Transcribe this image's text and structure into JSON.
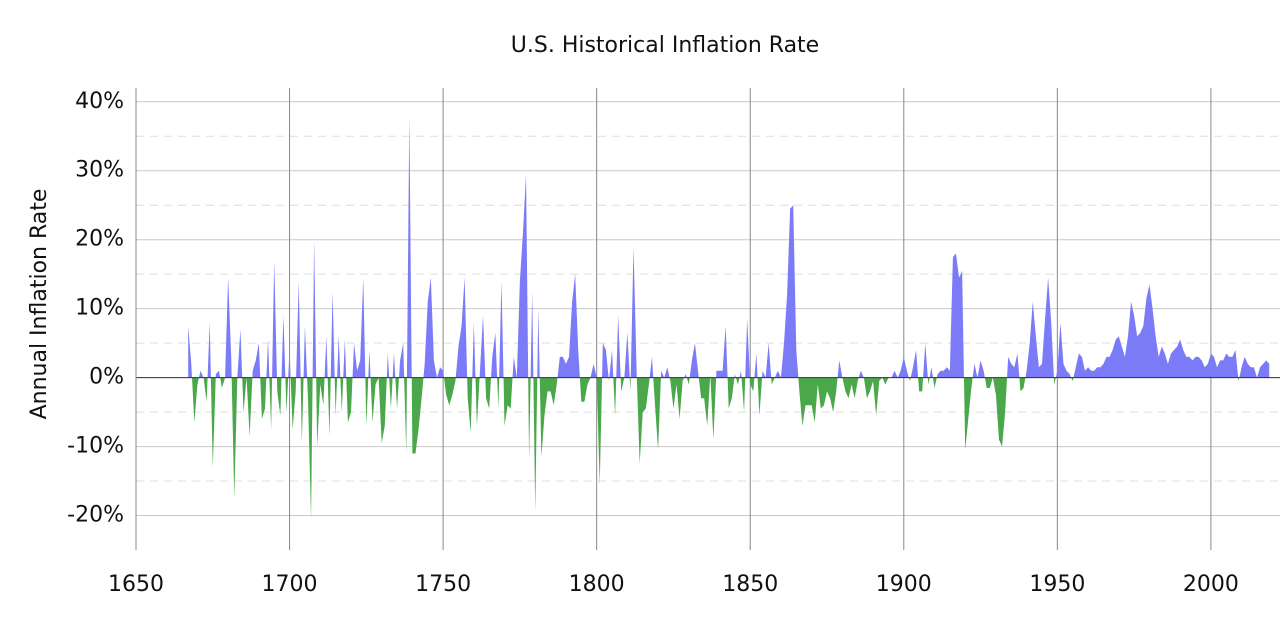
{
  "chart_data": {
    "type": "area",
    "title": "U.S. Historical Inflation Rate",
    "y_label": "Annual Inflation Rate",
    "positive_color": "#7b7bf7",
    "negative_color": "#4aa84a",
    "grid": true,
    "xlim": [
      1650,
      2022.5
    ],
    "xticks": [
      1650,
      1700,
      1750,
      1800,
      1850,
      1900,
      1950,
      2000
    ],
    "ylim": [
      -25,
      42
    ],
    "yticks": [
      {
        "value": -20,
        "label": "-20%"
      },
      {
        "value": -10,
        "label": "-10%"
      },
      {
        "value": 0,
        "label": "0%"
      },
      {
        "value": 10,
        "label": "10%"
      },
      {
        "value": 20,
        "label": "20%"
      },
      {
        "value": 30,
        "label": "30%"
      },
      {
        "value": 40,
        "label": "40%"
      }
    ],
    "minor_yticks": [
      -15,
      -5,
      5,
      15,
      25,
      35
    ],
    "x": [
      1667,
      1668,
      1669,
      1670,
      1671,
      1672,
      1673,
      1674,
      1675,
      1676,
      1677,
      1678,
      1679,
      1680,
      1681,
      1682,
      1683,
      1684,
      1685,
      1686,
      1687,
      1688,
      1689,
      1690,
      1691,
      1692,
      1693,
      1694,
      1695,
      1696,
      1697,
      1698,
      1699,
      1700,
      1701,
      1702,
      1703,
      1704,
      1705,
      1706,
      1707,
      1708,
      1709,
      1710,
      1711,
      1712,
      1713,
      1714,
      1715,
      1716,
      1717,
      1718,
      1719,
      1720,
      1721,
      1722,
      1723,
      1724,
      1725,
      1726,
      1727,
      1728,
      1729,
      1730,
      1731,
      1732,
      1733,
      1734,
      1735,
      1736,
      1737,
      1738,
      1739,
      1740,
      1741,
      1742,
      1743,
      1744,
      1745,
      1746,
      1747,
      1748,
      1749,
      1750,
      1751,
      1752,
      1753,
      1754,
      1755,
      1756,
      1757,
      1758,
      1759,
      1760,
      1761,
      1762,
      1763,
      1764,
      1765,
      1766,
      1767,
      1768,
      1769,
      1770,
      1771,
      1772,
      1773,
      1774,
      1775,
      1776,
      1777,
      1778,
      1779,
      1780,
      1781,
      1782,
      1783,
      1784,
      1785,
      1786,
      1787,
      1788,
      1789,
      1790,
      1791,
      1792,
      1793,
      1794,
      1795,
      1796,
      1797,
      1798,
      1799,
      1800,
      1801,
      1802,
      1803,
      1804,
      1805,
      1806,
      1807,
      1808,
      1809,
      1810,
      1811,
      1812,
      1813,
      1814,
      1815,
      1816,
      1817,
      1818,
      1819,
      1820,
      1821,
      1822,
      1823,
      1824,
      1825,
      1826,
      1827,
      1828,
      1829,
      1830,
      1831,
      1832,
      1833,
      1834,
      1835,
      1836,
      1837,
      1838,
      1839,
      1840,
      1841,
      1842,
      1843,
      1844,
      1845,
      1846,
      1847,
      1848,
      1849,
      1850,
      1851,
      1852,
      1853,
      1854,
      1855,
      1856,
      1857,
      1858,
      1859,
      1860,
      1861,
      1862,
      1863,
      1864,
      1865,
      1866,
      1867,
      1868,
      1869,
      1870,
      1871,
      1872,
      1873,
      1874,
      1875,
      1876,
      1877,
      1878,
      1879,
      1880,
      1881,
      1882,
      1883,
      1884,
      1885,
      1886,
      1887,
      1888,
      1889,
      1890,
      1891,
      1892,
      1893,
      1894,
      1895,
      1896,
      1897,
      1898,
      1899,
      1900,
      1901,
      1902,
      1903,
      1904,
      1905,
      1906,
      1907,
      1908,
      1909,
      1910,
      1911,
      1912,
      1913,
      1914,
      1915,
      1916,
      1917,
      1918,
      1919,
      1920,
      1921,
      1922,
      1923,
      1924,
      1925,
      1926,
      1927,
      1928,
      1929,
      1930,
      1931,
      1932,
      1933,
      1934,
      1935,
      1936,
      1937,
      1938,
      1939,
      1940,
      1941,
      1942,
      1943,
      1944,
      1945,
      1946,
      1947,
      1948,
      1949,
      1950,
      1951,
      1952,
      1953,
      1954,
      1955,
      1956,
      1957,
      1958,
      1959,
      1960,
      1961,
      1962,
      1963,
      1964,
      1965,
      1966,
      1967,
      1968,
      1969,
      1970,
      1971,
      1972,
      1973,
      1974,
      1975,
      1976,
      1977,
      1978,
      1979,
      1980,
      1981,
      1982,
      1983,
      1984,
      1985,
      1986,
      1987,
      1988,
      1989,
      1990,
      1991,
      1992,
      1993,
      1994,
      1995,
      1996,
      1997,
      1998,
      1999,
      2000,
      2001,
      2002,
      2003,
      2004,
      2005,
      2006,
      2007,
      2008,
      2009,
      2010,
      2011,
      2012,
      2013,
      2014,
      2015,
      2016,
      2017,
      2018,
      2019
    ],
    "values": [
      7.5,
      2,
      -6.5,
      -1,
      1,
      0,
      -3.5,
      8,
      -13,
      0.5,
      1,
      -1.5,
      0,
      14.5,
      3,
      -17.5,
      0,
      7,
      -5,
      0,
      -8.5,
      1,
      2.5,
      5,
      -6,
      -4.5,
      5.5,
      -7.5,
      17,
      -2,
      -5.5,
      9,
      -5,
      4,
      -7.5,
      -2,
      14,
      -9.5,
      7.5,
      -3,
      -20.5,
      20,
      -10,
      -1,
      -4,
      6,
      -8.5,
      12.5,
      -5.5,
      6,
      -5,
      5.5,
      -6.5,
      -5,
      5,
      1,
      2.5,
      14.5,
      -7,
      4,
      -6.5,
      -1,
      0,
      -9.5,
      -7,
      3.5,
      -4.5,
      3.5,
      -4.5,
      2.5,
      5,
      -11,
      38,
      -11,
      -11,
      -7.5,
      -3,
      2,
      11,
      14.5,
      2.5,
      0,
      1.5,
      1,
      -2.5,
      -4,
      -2.5,
      -0.5,
      4.5,
      7.5,
      14.5,
      -3,
      -8,
      8,
      -7,
      1,
      9,
      -3,
      -4.5,
      3,
      6.5,
      -4.5,
      14,
      -7,
      -4,
      -4.5,
      3,
      0,
      14,
      21,
      29.5,
      -12,
      12.5,
      -19.5,
      10,
      -11.5,
      -5.5,
      -2,
      -2,
      -4,
      -1,
      3,
      3,
      2,
      3,
      11,
      15,
      4,
      -3.5,
      -3.5,
      -1,
      0,
      2,
      0,
      -15.5,
      5,
      4,
      -0.5,
      4,
      -5.5,
      9,
      -2,
      0,
      6.5,
      -2,
      19,
      1,
      -12.5,
      -5,
      -4.5,
      -1,
      3,
      -4,
      -10.5,
      1,
      0,
      1.5,
      -0.5,
      -4.5,
      -1,
      -6,
      -0.5,
      0.5,
      -1,
      2.5,
      5,
      1,
      -3,
      -3,
      -7,
      0.5,
      -9,
      1,
      1,
      1,
      7.5,
      -4.5,
      -3,
      0.5,
      -1,
      1,
      -5,
      8.5,
      -1,
      -2,
      3.5,
      -5.5,
      1,
      0,
      5,
      -1,
      0,
      1,
      0,
      5,
      12,
      24.5,
      25,
      4,
      -2,
      -7,
      -4,
      -4,
      -4,
      -6.5,
      -1,
      -4.5,
      -4,
      -2,
      -3,
      -5,
      -2,
      2.5,
      0,
      -2,
      -3,
      -1,
      -3,
      -0.5,
      1,
      0,
      -3,
      -2,
      -0.5,
      -5.5,
      -0.5,
      0,
      -1,
      0,
      0,
      1,
      0,
      1,
      3,
      1,
      -0.5,
      1.5,
      4,
      -2,
      -2,
      5,
      -1,
      1.5,
      -1.5,
      0.5,
      1,
      1,
      1.5,
      1,
      17.5,
      18,
      14.5,
      15.5,
      -10.5,
      -6,
      -1.5,
      2,
      0,
      2.5,
      1,
      -1.5,
      -1.5,
      0,
      -2.5,
      -9,
      -10,
      -5,
      3,
      2,
      1.5,
      3.5,
      -2,
      -1.5,
      1,
      5,
      11,
      6,
      1.5,
      2,
      8.5,
      14.5,
      8,
      -1,
      1,
      8,
      2,
      1,
      0.5,
      -0.5,
      1.5,
      3.5,
      3,
      1,
      1.5,
      1,
      1,
      1.5,
      1.5,
      2,
      3,
      3,
      4,
      5.5,
      6,
      4.5,
      3,
      6,
      11,
      9,
      6,
      6.5,
      7.5,
      11.5,
      13.5,
      10,
      6,
      3,
      4.5,
      3.5,
      2,
      3.5,
      4,
      4.5,
      5.5,
      4,
      3,
      3,
      2.5,
      3,
      3,
      2.5,
      1.5,
      2,
      3.5,
      3,
      1.5,
      2.5,
      2.5,
      3.5,
      3,
      3,
      4,
      -0.5,
      1.5,
      3,
      2,
      1.5,
      1.5,
      0,
      1.5,
      2,
      2.5,
      2
    ]
  }
}
